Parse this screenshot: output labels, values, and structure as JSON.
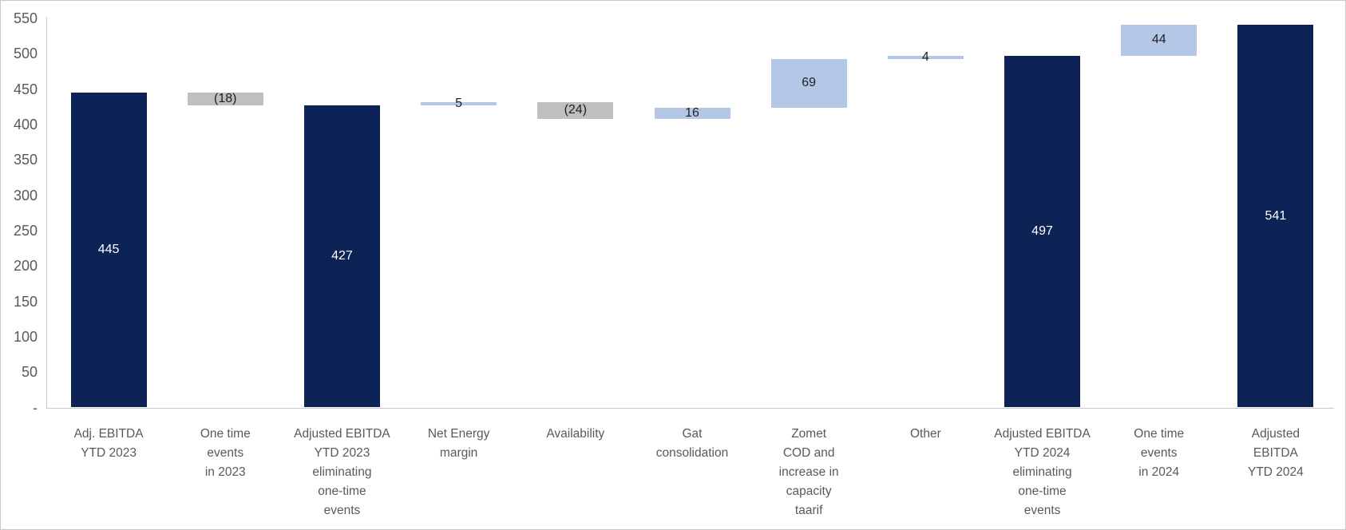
{
  "chart_data": {
    "type": "bar",
    "subtype": "waterfall",
    "title": "",
    "xlabel": "",
    "ylabel": "",
    "ylim": [
      0,
      550
    ],
    "y_tick_step": 50,
    "grid": false,
    "legend": "none",
    "y_axis_ticks": [
      {
        "text": "550",
        "value": 550
      },
      {
        "text": "500",
        "value": 500
      },
      {
        "text": "450",
        "value": 450
      },
      {
        "text": "400",
        "value": 400
      },
      {
        "text": "350",
        "value": 350
      },
      {
        "text": "300",
        "value": 300
      },
      {
        "text": "250",
        "value": 250
      },
      {
        "text": "200",
        "value": 200
      },
      {
        "text": "150",
        "value": 150
      },
      {
        "text": "100",
        "value": 100
      },
      {
        "text": "50",
        "value": 50
      },
      {
        "text": "-",
        "value": 0
      }
    ],
    "colors": {
      "total": "#0D2355",
      "increase": "#B4C7E7",
      "decrease": "#BFBFBF"
    },
    "label_colors": {
      "total": "#FFFFFF",
      "increase": "#1f1f1f",
      "decrease": "#1f1f1f"
    },
    "bars": [
      {
        "category_lines": [
          "Adj. EBITDA",
          "YTD 2023"
        ],
        "label": "445",
        "value": 445,
        "start": 0,
        "end": 445,
        "role": "total"
      },
      {
        "category_lines": [
          "One time",
          "events",
          "in 2023"
        ],
        "label": "(18)",
        "value": -18,
        "start": 427,
        "end": 445,
        "role": "decrease"
      },
      {
        "category_lines": [
          "Adjusted EBITDA",
          "YTD 2023",
          "eliminating",
          "one-time",
          "events"
        ],
        "label": "427",
        "value": 427,
        "start": 0,
        "end": 427,
        "role": "total"
      },
      {
        "category_lines": [
          "Net Energy",
          "margin"
        ],
        "label": "5",
        "value": 5,
        "start": 427,
        "end": 432,
        "role": "increase"
      },
      {
        "category_lines": [
          "Availability"
        ],
        "label": "(24)",
        "value": -24,
        "start": 408,
        "end": 432,
        "role": "decrease"
      },
      {
        "category_lines": [
          "Gat",
          "consolidation"
        ],
        "label": "16",
        "value": 16,
        "start": 408,
        "end": 424,
        "role": "increase"
      },
      {
        "category_lines": [
          "Zomet",
          "COD and",
          "increase in",
          "capacity",
          "taarif"
        ],
        "label": "69",
        "value": 69,
        "start": 424,
        "end": 493,
        "role": "increase"
      },
      {
        "category_lines": [
          "Other"
        ],
        "label": "4",
        "value": 4,
        "start": 493,
        "end": 497,
        "role": "increase"
      },
      {
        "category_lines": [
          "Adjusted EBITDA",
          "YTD 2024",
          "eliminating",
          "one-time",
          "events"
        ],
        "label": "497",
        "value": 497,
        "start": 0,
        "end": 497,
        "role": "total"
      },
      {
        "category_lines": [
          "One time",
          "events",
          "in 2024"
        ],
        "label": "44",
        "value": 44,
        "start": 497,
        "end": 541,
        "role": "increase"
      },
      {
        "category_lines": [
          "Adjusted",
          "EBITDA",
          "YTD 2024"
        ],
        "label": "541",
        "value": 541,
        "start": 0,
        "end": 541,
        "role": "total"
      }
    ]
  }
}
